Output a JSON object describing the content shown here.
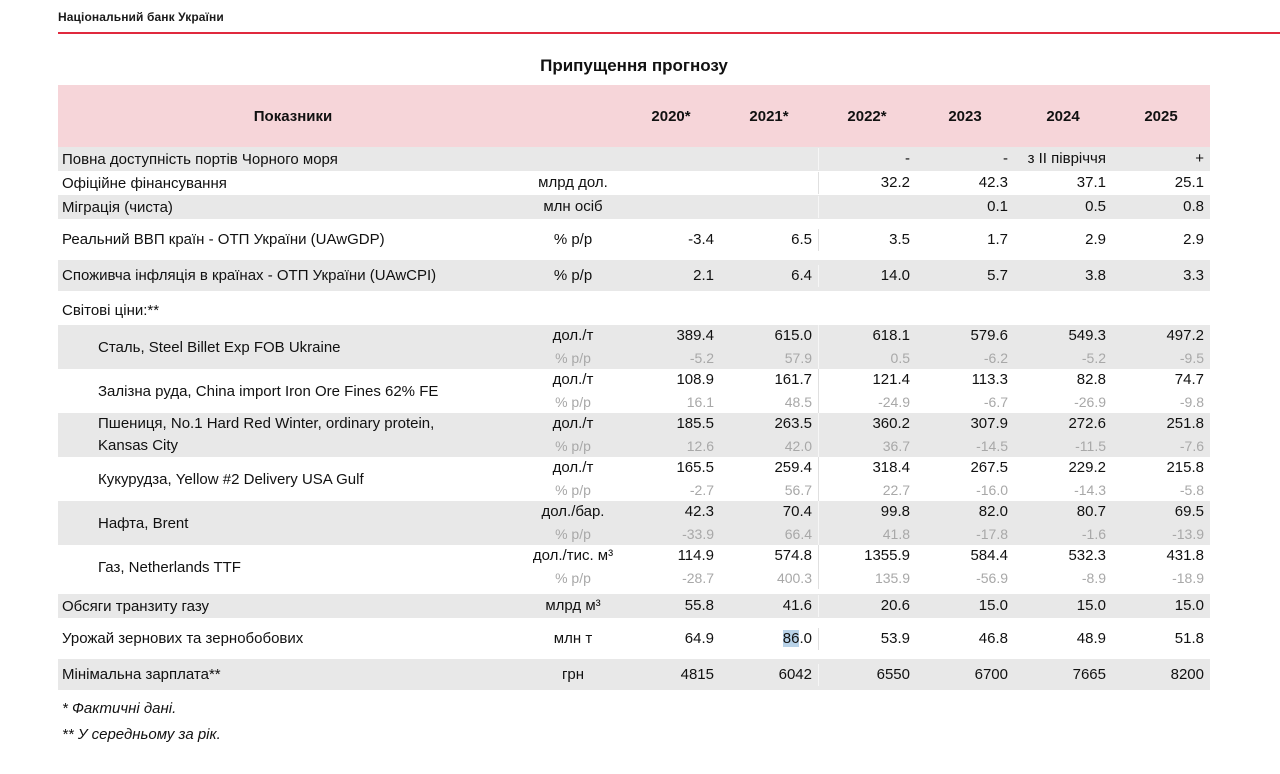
{
  "page": {
    "brand": "Національний банк України",
    "title": "Припущення прогнозу",
    "footnotes": [
      "* Фактичні дані.",
      "** У середньому за рік."
    ],
    "colors": {
      "accent_red": "#e0293e",
      "header_pink": "#f6d5d9",
      "row_gray": "#e8e8e8",
      "secondary_text": "#a8a8a8",
      "selection_blue": "#b8d2e8"
    }
  },
  "table": {
    "header": {
      "indicator_label": "Показники",
      "years": [
        "2020*",
        "2021*",
        "2022*",
        "2023",
        "2024",
        "2025"
      ]
    },
    "rows": [
      {
        "shade": "gray",
        "label": "Повна доступність портів Чорного моря",
        "lines": [
          {
            "unit": "",
            "kind": "primary",
            "values": [
              "",
              "",
              "-",
              "-",
              "з ІІ півріччя",
              "+"
            ]
          }
        ]
      },
      {
        "shade": "white",
        "label": "Офіційне фінансування",
        "lines": [
          {
            "unit": "млрд дол.",
            "kind": "primary",
            "values": [
              "",
              "",
              "32.2",
              "42.3",
              "37.1",
              "25.1"
            ]
          }
        ]
      },
      {
        "shade": "gray",
        "label": "Міграція (чиста)",
        "lines": [
          {
            "unit": "млн осіб",
            "kind": "primary",
            "values": [
              "",
              "",
              "",
              "0.1",
              "0.5",
              "0.8"
            ]
          }
        ]
      },
      {
        "shade": "white",
        "gap": true,
        "tall": true,
        "label": "Реальний ВВП країн - ОТП України (UAwGDP)",
        "lines": [
          {
            "unit": "% р/р",
            "kind": "primary",
            "values": [
              "-3.4",
              "6.5",
              "3.5",
              "1.7",
              "2.9",
              "2.9"
            ]
          }
        ]
      },
      {
        "shade": "gray",
        "gap": true,
        "tall": true,
        "label": "Споживча інфляція в країнах - ОТП України (UAwCPI)",
        "lines": [
          {
            "unit": "% р/р",
            "kind": "primary",
            "values": [
              "2.1",
              "6.4",
              "14.0",
              "5.7",
              "3.8",
              "3.3"
            ]
          }
        ]
      },
      {
        "shade": "white",
        "gap": true,
        "section": true,
        "label": "Світові ціни:**",
        "lines": []
      },
      {
        "shade": "gray",
        "indent": true,
        "label": "Сталь, Steel Billet Exp FOB Ukraine",
        "lines": [
          {
            "unit": "дол./т",
            "kind": "primary",
            "values": [
              "389.4",
              "615.0",
              "618.1",
              "579.6",
              "549.3",
              "497.2"
            ]
          },
          {
            "unit": "% р/р",
            "kind": "secondary",
            "values": [
              "-5.2",
              "57.9",
              "0.5",
              "-6.2",
              "-5.2",
              "-9.5"
            ]
          }
        ]
      },
      {
        "shade": "white",
        "indent": true,
        "label": "Залізна руда, China import Iron Ore Fines 62% FE",
        "lines": [
          {
            "unit": "дол./т",
            "kind": "primary",
            "values": [
              "108.9",
              "161.7",
              "121.4",
              "113.3",
              "82.8",
              "74.7"
            ]
          },
          {
            "unit": "% р/р",
            "kind": "secondary",
            "values": [
              "16.1",
              "48.5",
              "-24.9",
              "-6.7",
              "-26.9",
              "-9.8"
            ]
          }
        ]
      },
      {
        "shade": "gray",
        "indent": true,
        "label": "Пшениця, No.1 Hard Red Winter, ordinary protein,",
        "label2": "Kansas City",
        "lines": [
          {
            "unit": "дол./т",
            "kind": "primary",
            "values": [
              "185.5",
              "263.5",
              "360.2",
              "307.9",
              "272.6",
              "251.8"
            ]
          },
          {
            "unit": "% р/р",
            "kind": "secondary",
            "values": [
              "12.6",
              "42.0",
              "36.7",
              "-14.5",
              "-11.5",
              "-7.6"
            ]
          }
        ]
      },
      {
        "shade": "white",
        "indent": true,
        "label": "Кукурудза, Yellow #2 Delivery USA Gulf",
        "lines": [
          {
            "unit": "дол./т",
            "kind": "primary",
            "values": [
              "165.5",
              "259.4",
              "318.4",
              "267.5",
              "229.2",
              "215.8"
            ]
          },
          {
            "unit": "% р/р",
            "kind": "secondary",
            "values": [
              "-2.7",
              "56.7",
              "22.7",
              "-16.0",
              "-14.3",
              "-5.8"
            ]
          }
        ]
      },
      {
        "shade": "gray",
        "indent": true,
        "label": "Нафта, Brent",
        "lines": [
          {
            "unit": "дол./бар.",
            "kind": "primary",
            "values": [
              "42.3",
              "70.4",
              "99.8",
              "82.0",
              "80.7",
              "69.5"
            ]
          },
          {
            "unit": "% р/р",
            "kind": "secondary",
            "values": [
              "-33.9",
              "66.4",
              "41.8",
              "-17.8",
              "-1.6",
              "-13.9"
            ]
          }
        ]
      },
      {
        "shade": "white",
        "indent": true,
        "label": "Газ, Netherlands TTF",
        "lines": [
          {
            "unit": "дол./тис. м³",
            "kind": "primary",
            "values": [
              "114.9",
              "574.8",
              "1355.9",
              "584.4",
              "532.3",
              "431.8"
            ]
          },
          {
            "unit": "% р/р",
            "kind": "secondary",
            "values": [
              "-28.7",
              "400.3",
              "135.9",
              "-56.9",
              "-8.9",
              "-18.9"
            ]
          }
        ]
      },
      {
        "shade": "gray",
        "gap": true,
        "label": "Обсяги транзиту газу",
        "lines": [
          {
            "unit": "млрд м³",
            "kind": "primary",
            "values": [
              "55.8",
              "41.6",
              "20.6",
              "15.0",
              "15.0",
              "15.0"
            ]
          }
        ]
      },
      {
        "shade": "white",
        "gap": true,
        "tall": true,
        "label": "Урожай зернових та зернобобових",
        "highlight": {
          "col": 1,
          "selected": "86",
          "rest": ".0"
        },
        "lines": [
          {
            "unit": "млн т",
            "kind": "primary",
            "values": [
              "64.9",
              "86.0",
              "53.9",
              "46.8",
              "48.9",
              "51.8"
            ]
          }
        ]
      },
      {
        "shade": "gray",
        "gap": true,
        "tall": true,
        "label": "Мінімальна зарплата**",
        "lines": [
          {
            "unit": "грн",
            "kind": "primary",
            "values": [
              "4815",
              "6042",
              "6550",
              "6700",
              "7665",
              "8200"
            ]
          }
        ]
      }
    ]
  }
}
